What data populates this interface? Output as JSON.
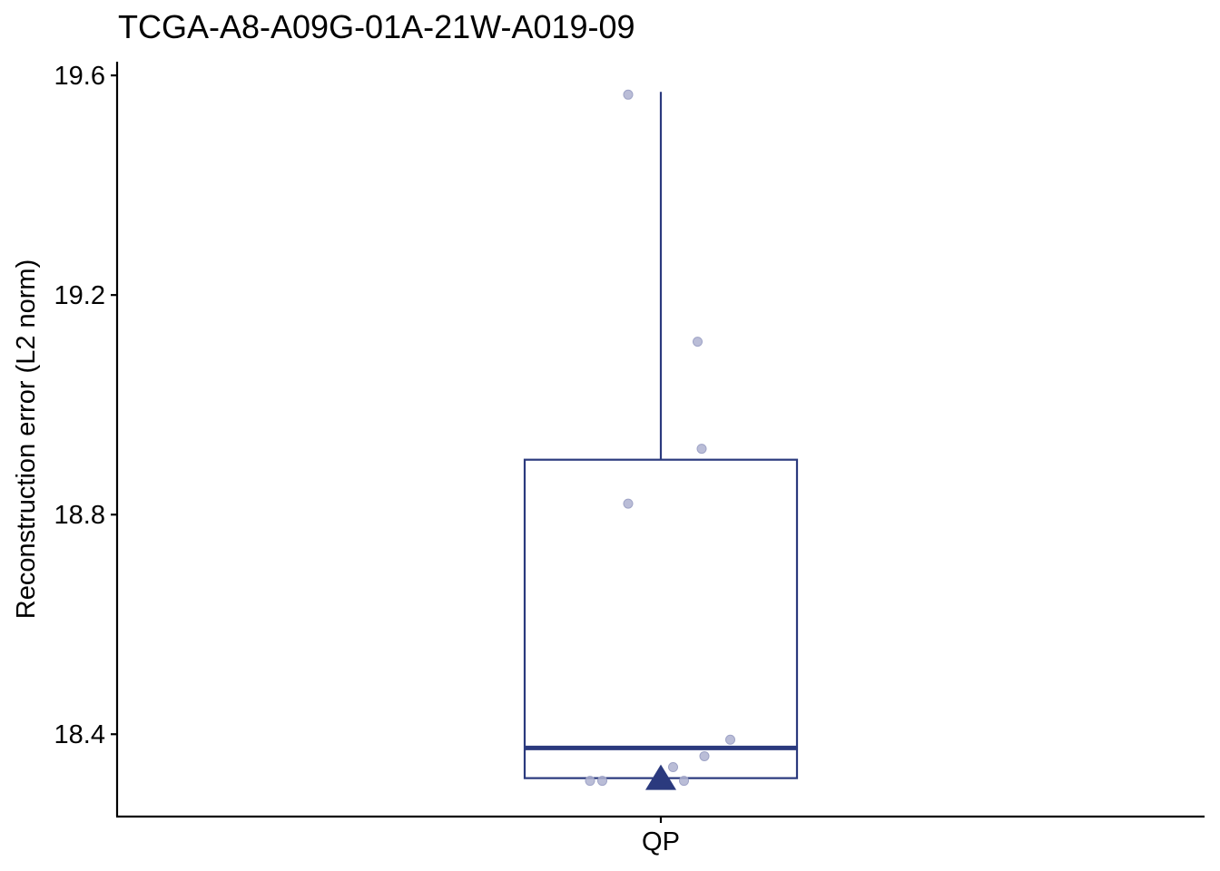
{
  "chart_data": {
    "type": "box",
    "title": "TCGA-A8-A09G-01A-21W-A019-09",
    "xlabel": "",
    "ylabel": "Reconstruction error (L2 norm)",
    "categories": [
      "QP"
    ],
    "ylim": [
      18.25,
      19.625
    ],
    "yticks": [
      18.4,
      18.8,
      19.2,
      19.6
    ],
    "ytick_labels": [
      "18.4",
      "18.8",
      "19.2",
      "19.6"
    ],
    "grid": false,
    "legend": "none",
    "color": "#2b3a7e",
    "point_color": "#aeb2d0",
    "series": [
      {
        "category": "QP",
        "box": {
          "lower_whisker": 18.32,
          "q1": 18.32,
          "median": 18.375,
          "q3": 18.9,
          "upper_whisker": 19.57
        },
        "mean": 18.32,
        "points": [
          {
            "offset": -0.52,
            "y": 18.315
          },
          {
            "offset": -0.43,
            "y": 18.315
          },
          {
            "offset": -0.24,
            "y": 19.565
          },
          {
            "offset": -0.24,
            "y": 18.82
          },
          {
            "offset": 0.09,
            "y": 18.34
          },
          {
            "offset": 0.17,
            "y": 18.315
          },
          {
            "offset": 0.27,
            "y": 19.115
          },
          {
            "offset": 0.3,
            "y": 18.92
          },
          {
            "offset": 0.32,
            "y": 18.36
          },
          {
            "offset": 0.51,
            "y": 18.39
          }
        ]
      }
    ]
  }
}
